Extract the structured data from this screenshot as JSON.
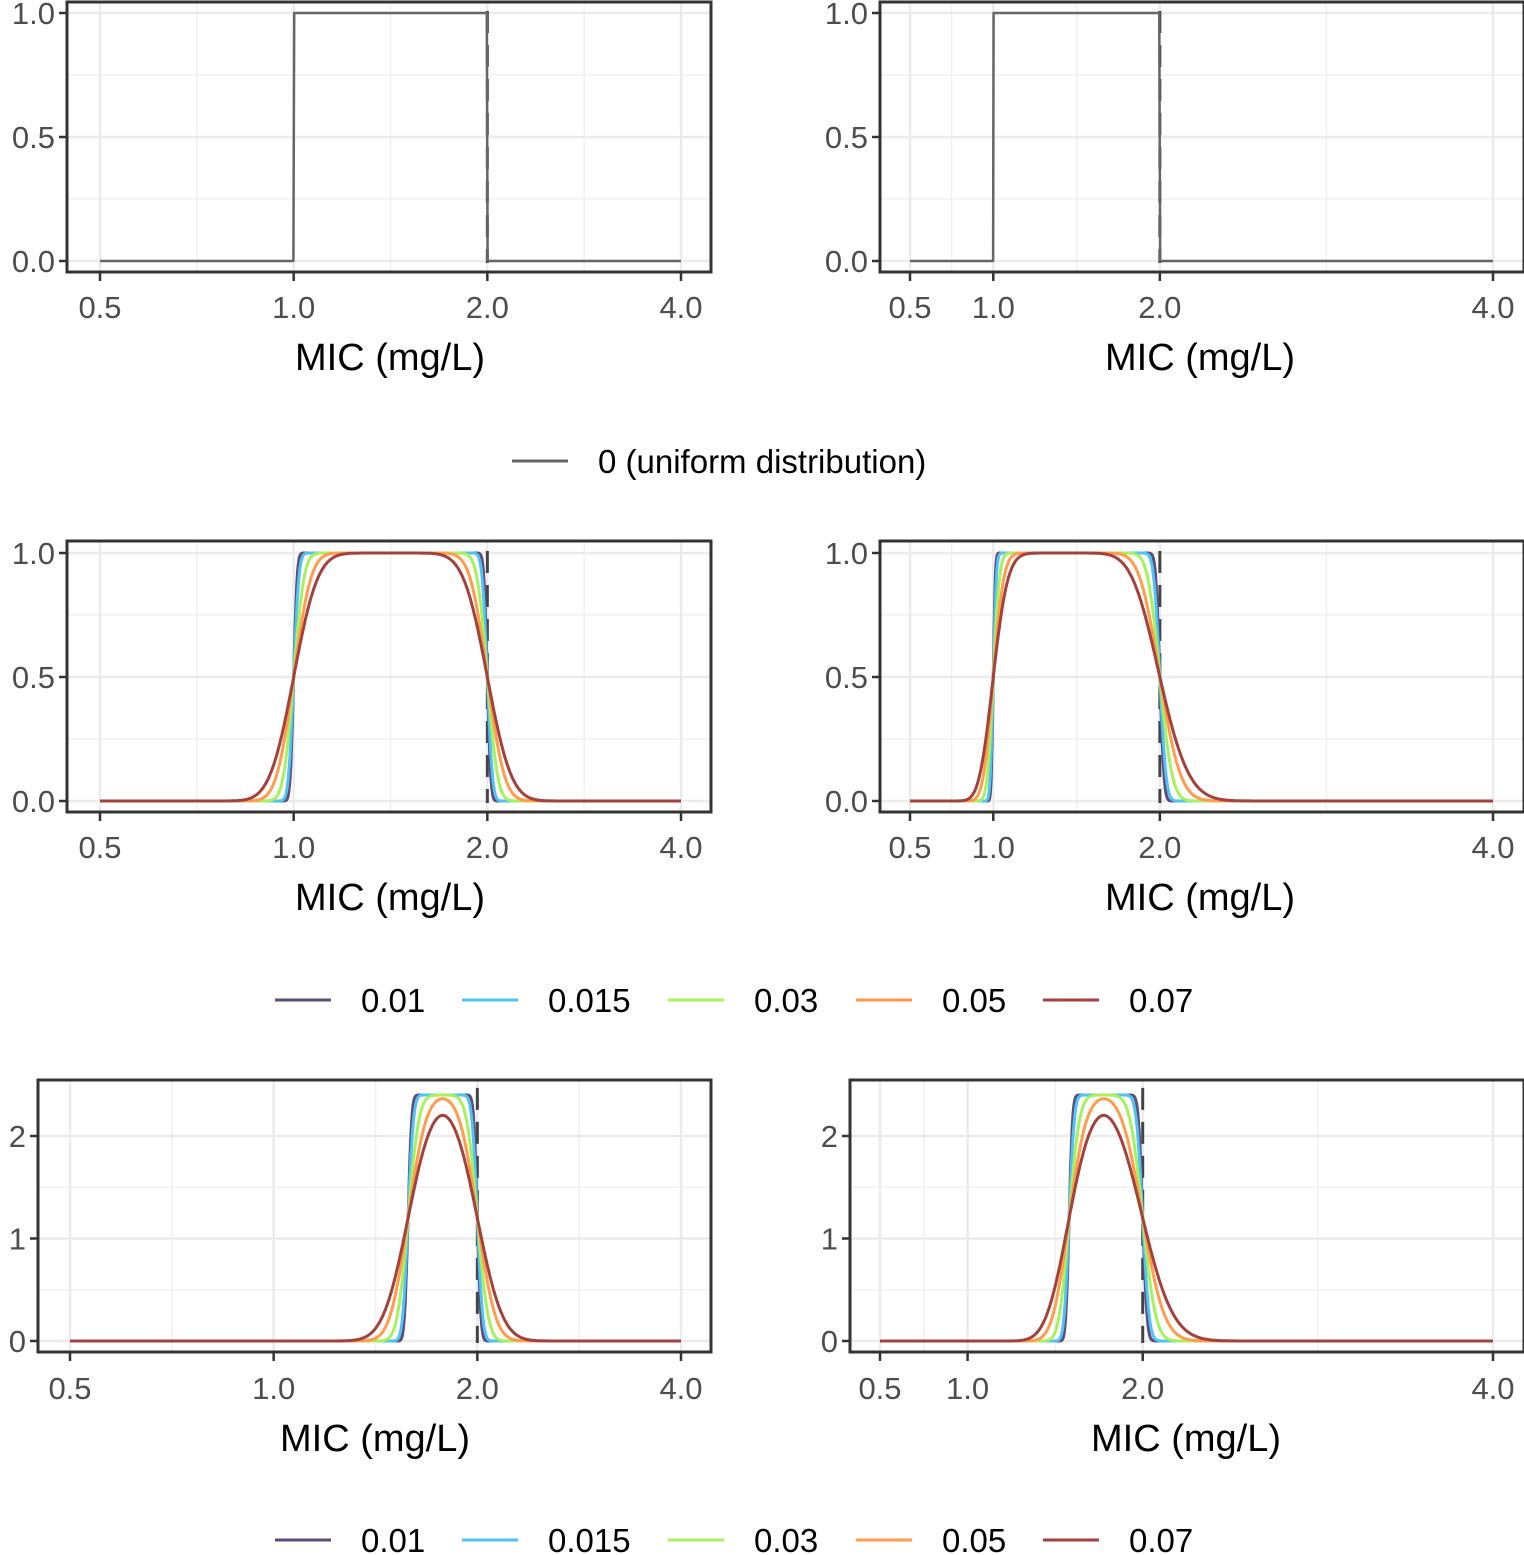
{
  "chart_data": [
    {
      "type": "line",
      "row": 1,
      "column": 1,
      "x_scale": "log2",
      "xlabel": "MIC (mg/L)",
      "xticks": [
        0.5,
        1.0,
        2.0,
        4.0
      ],
      "xtick_labels": [
        "0.5",
        "1.0",
        "2.0",
        "4.0"
      ],
      "ylim": [
        0,
        1
      ],
      "yticks": [
        0,
        0.5,
        1
      ],
      "ytick_labels": [
        "0.0",
        "0.5",
        "1.0"
      ],
      "reference_line_x": 2.0,
      "grid": true,
      "curve_kind": "probability",
      "support": [
        1,
        2
      ],
      "series": [
        {
          "name": "0 (uniform distribution)",
          "sd": 0,
          "color": "#666666"
        }
      ]
    },
    {
      "type": "line",
      "row": 1,
      "column": 2,
      "x_scale": "linear",
      "xlabel": "MIC (mg/L)",
      "xticks": [
        0.5,
        1.0,
        2.0,
        4.0
      ],
      "xtick_labels": [
        "0.5",
        "1.0",
        "2.0",
        "4.0"
      ],
      "ylim": [
        0,
        1
      ],
      "yticks": [
        0,
        0.5,
        1
      ],
      "ytick_labels": [
        "0.0",
        "0.5",
        "1.0"
      ],
      "reference_line_x": 2.0,
      "grid": true,
      "curve_kind": "probability",
      "support": [
        1,
        2
      ],
      "series": [
        {
          "name": "0 (uniform distribution)",
          "sd": 0,
          "color": "#666666"
        }
      ]
    },
    {
      "type": "line",
      "row": 2,
      "column": 1,
      "x_scale": "log2",
      "xlabel": "MIC (mg/L)",
      "xticks": [
        0.5,
        1.0,
        2.0,
        4.0
      ],
      "xtick_labels": [
        "0.5",
        "1.0",
        "2.0",
        "4.0"
      ],
      "ylim": [
        0,
        1
      ],
      "yticks": [
        0,
        0.5,
        1
      ],
      "ytick_labels": [
        "0.0",
        "0.5",
        "1.0"
      ],
      "reference_line_x": 2.0,
      "grid": true,
      "curve_kind": "probability",
      "support": [
        1,
        2
      ],
      "series": [
        {
          "name": "0.01",
          "sd": 0.01,
          "color": "#5e4b7a"
        },
        {
          "name": "0.015",
          "sd": 0.015,
          "color": "#4ec3f5"
        },
        {
          "name": "0.03",
          "sd": 0.03,
          "color": "#a8f05c"
        },
        {
          "name": "0.05",
          "sd": 0.05,
          "color": "#ff9c4d"
        },
        {
          "name": "0.07",
          "sd": 0.07,
          "color": "#a3413d"
        }
      ]
    },
    {
      "type": "line",
      "row": 2,
      "column": 2,
      "x_scale": "linear",
      "xlabel": "MIC (mg/L)",
      "xticks": [
        0.5,
        1.0,
        2.0,
        4.0
      ],
      "xtick_labels": [
        "0.5",
        "1.0",
        "2.0",
        "4.0"
      ],
      "ylim": [
        0,
        1
      ],
      "yticks": [
        0,
        0.5,
        1
      ],
      "ytick_labels": [
        "0.0",
        "0.5",
        "1.0"
      ],
      "reference_line_x": 2.0,
      "grid": true,
      "curve_kind": "probability",
      "support": [
        1,
        2
      ],
      "series": [
        {
          "name": "0.01",
          "sd": 0.01,
          "color": "#5e4b7a"
        },
        {
          "name": "0.015",
          "sd": 0.015,
          "color": "#4ec3f5"
        },
        {
          "name": "0.03",
          "sd": 0.03,
          "color": "#a8f05c"
        },
        {
          "name": "0.05",
          "sd": 0.05,
          "color": "#ff9c4d"
        },
        {
          "name": "0.07",
          "sd": 0.07,
          "color": "#a3413d"
        }
      ]
    },
    {
      "type": "line",
      "row": 3,
      "column": 1,
      "x_scale": "log2",
      "xlabel": "MIC (mg/L)",
      "xticks": [
        0.5,
        1.0,
        2.0,
        4.0
      ],
      "xtick_labels": [
        "0.5",
        "1.0",
        "2.0",
        "4.0"
      ],
      "ylim": [
        0,
        2.5
      ],
      "yticks": [
        0,
        1,
        2
      ],
      "ytick_labels": [
        "0",
        "1",
        "2"
      ],
      "reference_line_x": 2.0,
      "grid": true,
      "curve_kind": "density",
      "support": [
        1.58,
        2
      ],
      "peak": 2.4,
      "series": [
        {
          "name": "0.01",
          "sd": 0.01,
          "color": "#5e4b7a"
        },
        {
          "name": "0.015",
          "sd": 0.015,
          "color": "#4ec3f5"
        },
        {
          "name": "0.03",
          "sd": 0.03,
          "color": "#a8f05c"
        },
        {
          "name": "0.05",
          "sd": 0.05,
          "color": "#ff9c4d"
        },
        {
          "name": "0.07",
          "sd": 0.07,
          "color": "#a3413d"
        }
      ]
    },
    {
      "type": "line",
      "row": 3,
      "column": 2,
      "x_scale": "linear",
      "xlabel": "MIC (mg/L)",
      "xticks": [
        0.5,
        1.0,
        2.0,
        4.0
      ],
      "xtick_labels": [
        "0.5",
        "1.0",
        "2.0",
        "4.0"
      ],
      "ylim": [
        0,
        2.5
      ],
      "yticks": [
        0,
        1,
        2
      ],
      "ytick_labels": [
        "0",
        "1",
        "2"
      ],
      "reference_line_x": 2.0,
      "grid": true,
      "curve_kind": "density",
      "support": [
        1.58,
        2
      ],
      "peak": 2.4,
      "series": [
        {
          "name": "0.01",
          "sd": 0.01,
          "color": "#5e4b7a"
        },
        {
          "name": "0.015",
          "sd": 0.015,
          "color": "#4ec3f5"
        },
        {
          "name": "0.03",
          "sd": 0.03,
          "color": "#a8f05c"
        },
        {
          "name": "0.05",
          "sd": 0.05,
          "color": "#ff9c4d"
        },
        {
          "name": "0.07",
          "sd": 0.07,
          "color": "#a3413d"
        }
      ]
    }
  ],
  "legends": [
    {
      "placement": "below-row-1",
      "entries": [
        {
          "label": "0 (uniform distribution)",
          "color": "#666666"
        }
      ]
    },
    {
      "placement": "below-row-2",
      "entries": [
        {
          "label": "0.01",
          "color": "#5e4b7a"
        },
        {
          "label": "0.015",
          "color": "#4ec3f5"
        },
        {
          "label": "0.03",
          "color": "#a8f05c"
        },
        {
          "label": "0.05",
          "color": "#ff9c4d"
        },
        {
          "label": "0.07",
          "color": "#a3413d"
        }
      ]
    },
    {
      "placement": "below-row-3",
      "entries": [
        {
          "label": "0.01",
          "color": "#5e4b7a"
        },
        {
          "label": "0.015",
          "color": "#4ec3f5"
        },
        {
          "label": "0.03",
          "color": "#a8f05c"
        },
        {
          "label": "0.05",
          "color": "#ff9c4d"
        },
        {
          "label": "0.07",
          "color": "#a3413d"
        }
      ]
    }
  ]
}
